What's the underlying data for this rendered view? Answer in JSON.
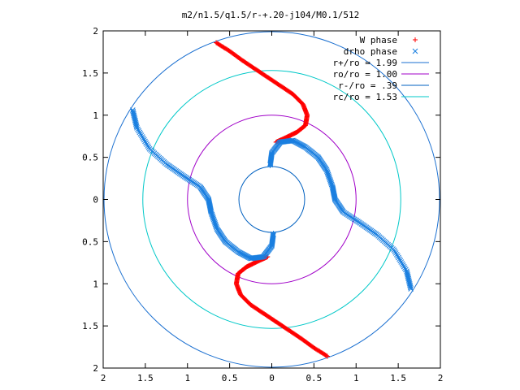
{
  "chart_data": {
    "type": "scatter",
    "title": "m2/n1.5/q1.5/r-+.20-j104/M0.1/512",
    "xlabel": "",
    "ylabel": "",
    "xlim": [
      -2,
      2
    ],
    "ylim": [
      -2,
      2
    ],
    "x_ticks": [
      {
        "value": -2,
        "label": "2"
      },
      {
        "value": -1.5,
        "label": "1.5"
      },
      {
        "value": -1,
        "label": "1"
      },
      {
        "value": -0.5,
        "label": "0.5"
      },
      {
        "value": 0,
        "label": "0"
      },
      {
        "value": 0.5,
        "label": "0.5"
      },
      {
        "value": 1,
        "label": "1"
      },
      {
        "value": 1.5,
        "label": "1.5"
      },
      {
        "value": 2,
        "label": "2"
      }
    ],
    "y_ticks": [
      {
        "value": 2,
        "label": "2"
      },
      {
        "value": 1.5,
        "label": "1.5"
      },
      {
        "value": 1,
        "label": "1"
      },
      {
        "value": 0.5,
        "label": "0.5"
      },
      {
        "value": 0,
        "label": "0"
      },
      {
        "value": -0.5,
        "label": "0.5"
      },
      {
        "value": -1,
        "label": "1"
      },
      {
        "value": -1.5,
        "label": "1.5"
      },
      {
        "value": -2,
        "label": "2"
      }
    ],
    "grid": false,
    "legend_position": "top-right",
    "circles": [
      {
        "label": "r+/ro = 1.99",
        "radius": 1.99,
        "color": "#1a6fd0"
      },
      {
        "label": "ro/ro = 1.00",
        "radius": 1.0,
        "color": "#a000c8"
      },
      {
        "label": "r-/ro = .39",
        "radius": 0.39,
        "color": "#0060c0"
      },
      {
        "label": "rc/ro = 1.53",
        "radius": 1.53,
        "color": "#00c8c8"
      }
    ],
    "series": [
      {
        "name": "W phase",
        "marker": "plus",
        "color": "#ff0000",
        "points": [
          [
            -0.66,
            1.86
          ],
          [
            -0.5,
            1.76
          ],
          [
            -0.35,
            1.65
          ],
          [
            -0.2,
            1.55
          ],
          [
            -0.05,
            1.45
          ],
          [
            0.1,
            1.35
          ],
          [
            0.25,
            1.25
          ],
          [
            0.37,
            1.13
          ],
          [
            0.42,
            1.0
          ],
          [
            0.4,
            0.88
          ],
          [
            0.3,
            0.8
          ],
          [
            0.18,
            0.74
          ],
          [
            0.05,
            0.68
          ],
          [
            0.66,
            -1.86
          ],
          [
            0.5,
            -1.76
          ],
          [
            0.35,
            -1.65
          ],
          [
            0.2,
            -1.55
          ],
          [
            0.05,
            -1.45
          ],
          [
            -0.1,
            -1.35
          ],
          [
            -0.25,
            -1.25
          ],
          [
            -0.37,
            -1.13
          ],
          [
            -0.42,
            -1.0
          ],
          [
            -0.4,
            -0.88
          ],
          [
            -0.3,
            -0.8
          ],
          [
            -0.18,
            -0.74
          ],
          [
            -0.05,
            -0.68
          ]
        ]
      },
      {
        "name": "drho phase",
        "marker": "cross",
        "color": "#1a7fe0",
        "points": [
          [
            -1.65,
            1.06
          ],
          [
            -1.6,
            0.85
          ],
          [
            -1.45,
            0.6
          ],
          [
            -1.25,
            0.42
          ],
          [
            -1.05,
            0.28
          ],
          [
            -0.85,
            0.15
          ],
          [
            -0.75,
            0.0
          ],
          [
            -0.72,
            -0.15
          ],
          [
            -0.65,
            -0.35
          ],
          [
            -0.55,
            -0.5
          ],
          [
            -0.4,
            -0.62
          ],
          [
            -0.25,
            -0.7
          ],
          [
            -0.1,
            -0.68
          ],
          [
            0.0,
            -0.55
          ],
          [
            0.02,
            -0.4
          ],
          [
            1.65,
            -1.06
          ],
          [
            1.6,
            -0.85
          ],
          [
            1.45,
            -0.6
          ],
          [
            1.25,
            -0.42
          ],
          [
            1.05,
            -0.28
          ],
          [
            0.85,
            -0.15
          ],
          [
            0.75,
            0.0
          ],
          [
            0.72,
            0.15
          ],
          [
            0.65,
            0.35
          ],
          [
            0.55,
            0.5
          ],
          [
            0.4,
            0.62
          ],
          [
            0.25,
            0.7
          ],
          [
            0.1,
            0.68
          ],
          [
            0.0,
            0.55
          ],
          [
            -0.02,
            0.4
          ]
        ]
      }
    ]
  }
}
